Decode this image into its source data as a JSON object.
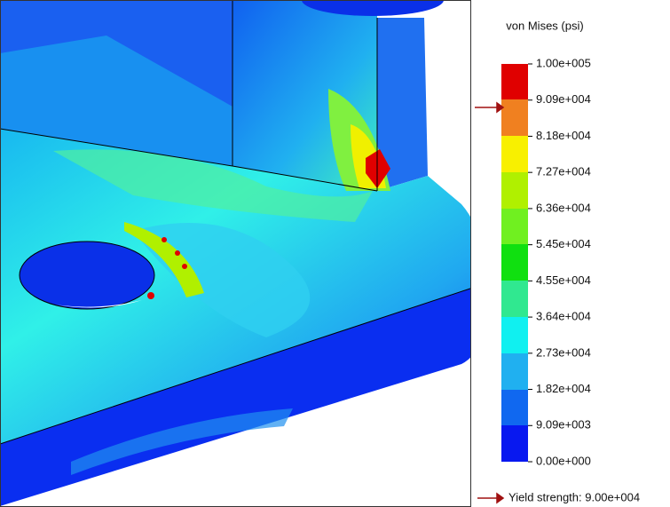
{
  "legend": {
    "title": "von Mises (psi)",
    "labels": [
      "1.00e+005",
      "9.09e+004",
      "8.18e+004",
      "7.27e+004",
      "6.36e+004",
      "5.45e+004",
      "4.55e+004",
      "3.64e+004",
      "2.73e+004",
      "1.82e+004",
      "9.09e+003",
      "0.00e+000"
    ]
  },
  "yield_strength": "Yield strength: 9.00e+004"
}
